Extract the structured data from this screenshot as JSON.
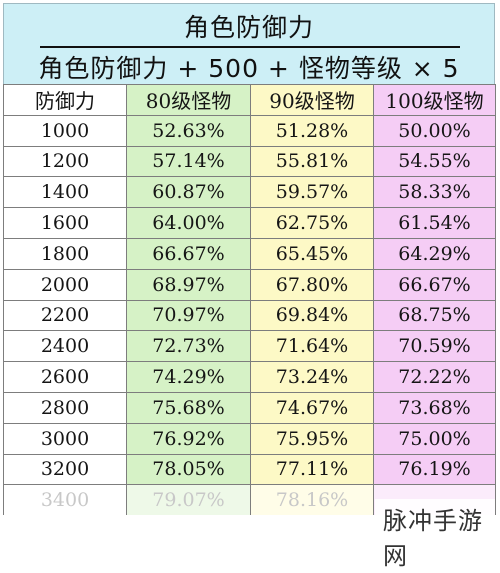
{
  "formula": {
    "numerator": "角色防御力",
    "denominator": "角色防御力 + 500 + 怪物等级 × 5"
  },
  "table": {
    "headers": [
      "防御力",
      "80级怪物",
      "90级怪物",
      "100级怪物"
    ],
    "rows": [
      [
        "1000",
        "52.63%",
        "51.28%",
        "50.00%"
      ],
      [
        "1200",
        "57.14%",
        "55.81%",
        "54.55%"
      ],
      [
        "1400",
        "60.87%",
        "59.57%",
        "58.33%"
      ],
      [
        "1600",
        "64.00%",
        "62.75%",
        "61.54%"
      ],
      [
        "1800",
        "66.67%",
        "65.45%",
        "64.29%"
      ],
      [
        "2000",
        "68.97%",
        "67.80%",
        "66.67%"
      ],
      [
        "2200",
        "70.97%",
        "69.84%",
        "68.75%"
      ],
      [
        "2400",
        "72.73%",
        "71.64%",
        "70.59%"
      ],
      [
        "2600",
        "74.29%",
        "73.24%",
        "72.22%"
      ],
      [
        "2800",
        "75.68%",
        "74.67%",
        "73.68%"
      ],
      [
        "3000",
        "76.92%",
        "75.95%",
        "75.00%"
      ],
      [
        "3200",
        "78.05%",
        "77.11%",
        "76.19%"
      ],
      [
        "3400",
        "79.07%",
        "78.16%",
        ""
      ]
    ]
  },
  "watermark": "脉冲手游网",
  "colors": {
    "formula_bg": "#cdeff6",
    "col_80": "#d6f2c6",
    "col_90": "#fdf9c6",
    "col_100": "#f5cdf5"
  }
}
